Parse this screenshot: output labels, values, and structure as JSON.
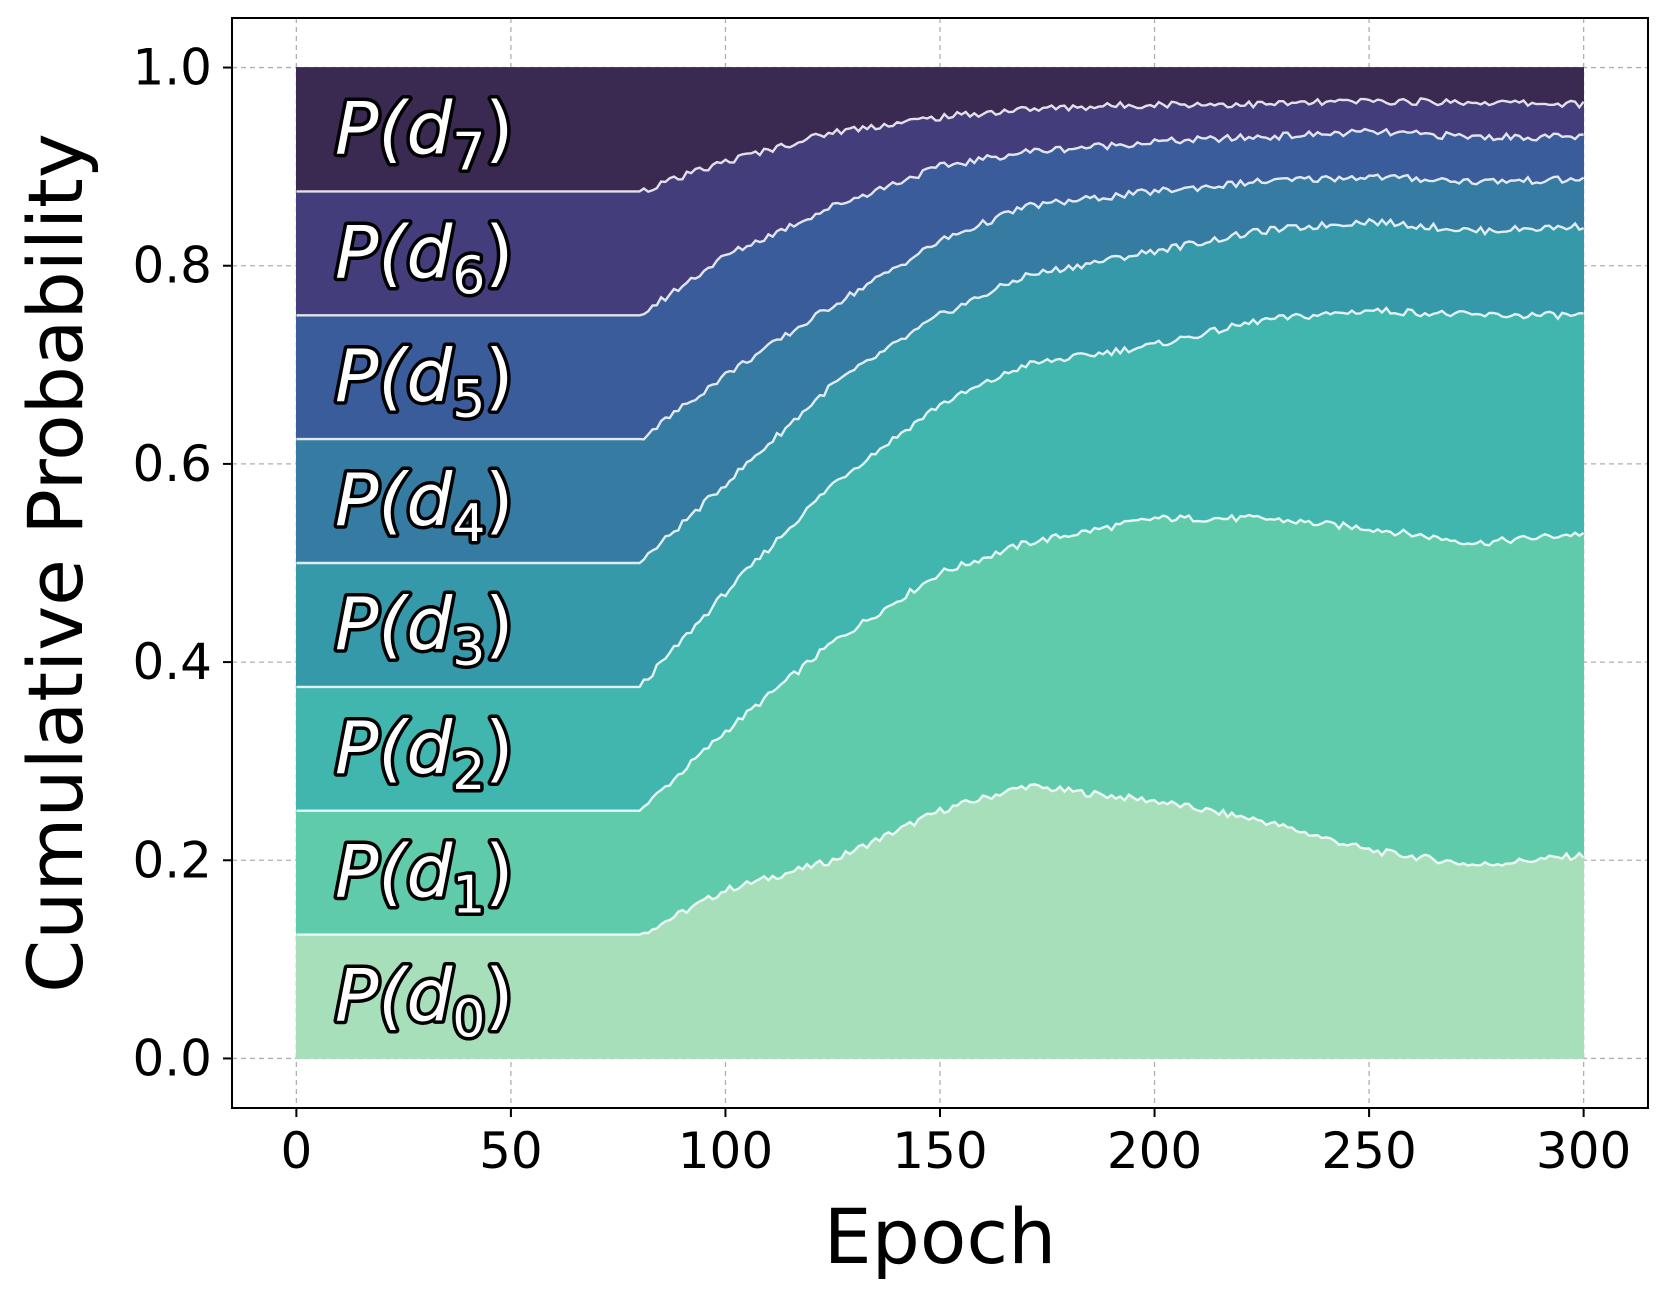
{
  "chart_data": {
    "type": "area",
    "stacked": true,
    "xlabel": "Epoch",
    "ylabel": "Cumulative Probability",
    "xlim": [
      -15,
      315
    ],
    "ylim": [
      -0.05,
      1.05
    ],
    "xticks": [
      0,
      50,
      100,
      150,
      200,
      250,
      300
    ],
    "yticks": [
      0.0,
      0.2,
      0.4,
      0.6,
      0.8,
      1.0
    ],
    "xtick_labels": [
      "0",
      "50",
      "100",
      "150",
      "200",
      "250",
      "300"
    ],
    "ytick_labels": [
      "0.0",
      "0.2",
      "0.4",
      "0.6",
      "0.8",
      "1.0"
    ],
    "grid": true,
    "x": [
      0,
      80,
      100,
      125,
      150,
      170,
      200,
      225,
      250,
      275,
      300
    ],
    "boundaries": [
      {
        "upper_of": "P(d0)",
        "values": [
          0.125,
          0.125,
          0.17,
          0.2,
          0.25,
          0.275,
          0.26,
          0.24,
          0.21,
          0.195,
          0.205
        ]
      },
      {
        "upper_of": "P(d1)",
        "values": [
          0.25,
          0.25,
          0.33,
          0.42,
          0.49,
          0.52,
          0.545,
          0.545,
          0.535,
          0.52,
          0.53
        ]
      },
      {
        "upper_of": "P(d2)",
        "values": [
          0.375,
          0.375,
          0.47,
          0.58,
          0.66,
          0.7,
          0.72,
          0.745,
          0.755,
          0.75,
          0.75
        ]
      },
      {
        "upper_of": "P(d3)",
        "values": [
          0.5,
          0.5,
          0.58,
          0.68,
          0.75,
          0.79,
          0.815,
          0.835,
          0.845,
          0.835,
          0.84
        ]
      },
      {
        "upper_of": "P(d4)",
        "values": [
          0.625,
          0.625,
          0.69,
          0.76,
          0.825,
          0.86,
          0.875,
          0.885,
          0.89,
          0.885,
          0.887
        ]
      },
      {
        "upper_of": "P(d5)",
        "values": [
          0.75,
          0.75,
          0.81,
          0.86,
          0.9,
          0.915,
          0.925,
          0.93,
          0.935,
          0.93,
          0.93
        ]
      },
      {
        "upper_of": "P(d6)",
        "values": [
          0.875,
          0.875,
          0.905,
          0.935,
          0.95,
          0.958,
          0.963,
          0.963,
          0.966,
          0.965,
          0.963
        ]
      },
      {
        "upper_of": "P(d7)",
        "values": [
          1.0,
          1.0,
          1.0,
          1.0,
          1.0,
          1.0,
          1.0,
          1.0,
          1.0,
          1.0,
          1.0
        ]
      }
    ],
    "series": [
      {
        "name": "P(d0)",
        "label_base": "P(d",
        "label_sub": "0",
        "label_close": ")",
        "color": "#a8dfbb"
      },
      {
        "name": "P(d1)",
        "label_base": "P(d",
        "label_sub": "1",
        "label_close": ")",
        "color": "#60cbab"
      },
      {
        "name": "P(d2)",
        "label_base": "P(d",
        "label_sub": "2",
        "label_close": ")",
        "color": "#40b6ae"
      },
      {
        "name": "P(d3)",
        "label_base": "P(d",
        "label_sub": "3",
        "label_close": ")",
        "color": "#3599a9"
      },
      {
        "name": "P(d4)",
        "label_base": "P(d",
        "label_sub": "4",
        "label_close": ")",
        "color": "#357ba2"
      },
      {
        "name": "P(d5)",
        "label_base": "P(d",
        "label_sub": "5",
        "label_close": ")",
        "color": "#3b5c9a"
      },
      {
        "name": "P(d6)",
        "label_base": "P(d",
        "label_sub": "6",
        "label_close": ")",
        "color": "#443d7c"
      },
      {
        "name": "P(d7)",
        "label_base": "P(d",
        "label_sub": "7",
        "label_close": ")",
        "color": "#3a2951"
      }
    ]
  }
}
